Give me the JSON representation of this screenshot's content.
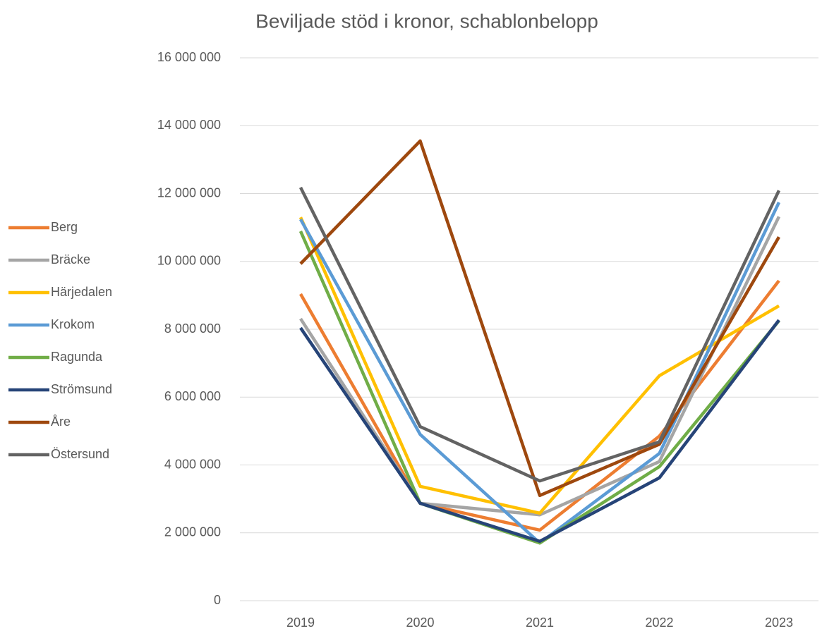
{
  "chart_data": {
    "type": "line",
    "title": "Beviljade stöd i kronor, schablonbelopp",
    "categories": [
      "2019",
      "2020",
      "2021",
      "2022",
      "2023"
    ],
    "series": [
      {
        "name": "Berg",
        "color": "#ED7D31",
        "values": [
          9040000,
          2870000,
          2080000,
          4850000,
          9430000
        ]
      },
      {
        "name": "Bräcke",
        "color": "#A5A5A5",
        "values": [
          8310000,
          2870000,
          2530000,
          4100000,
          11320000
        ]
      },
      {
        "name": "Härjedalen",
        "color": "#FFC000",
        "values": [
          11300000,
          3370000,
          2580000,
          6630000,
          8690000
        ]
      },
      {
        "name": "Krokom",
        "color": "#5B9BD5",
        "values": [
          11240000,
          4900000,
          1700000,
          4340000,
          11740000
        ]
      },
      {
        "name": "Ragunda",
        "color": "#70AD47",
        "values": [
          10890000,
          2870000,
          1700000,
          3950000,
          8250000
        ]
      },
      {
        "name": "Strömsund",
        "color": "#264478",
        "values": [
          8040000,
          2870000,
          1750000,
          3620000,
          8270000
        ]
      },
      {
        "name": "Åre",
        "color": "#9E480E",
        "values": [
          9930000,
          13550000,
          3100000,
          4610000,
          10720000
        ]
      },
      {
        "name": "Östersund",
        "color": "#636363",
        "values": [
          12180000,
          5130000,
          3530000,
          4680000,
          12090000
        ]
      }
    ],
    "ylim": [
      0,
      16000000
    ],
    "yticks": [
      0,
      {
        "value": 2000000,
        "label": "2 000 000"
      },
      {
        "value": 4000000,
        "label": "4 000 000"
      },
      {
        "value": 6000000,
        "label": "6 000 000"
      },
      {
        "value": 8000000,
        "label": "8 000 000"
      },
      {
        "value": 10000000,
        "label": "10 000 000"
      },
      {
        "value": 12000000,
        "label": "12 000 000"
      },
      {
        "value": 14000000,
        "label": "14 000 000"
      },
      {
        "value": 16000000,
        "label": "16 000 000"
      }
    ],
    "grid": true,
    "legend": "left"
  }
}
